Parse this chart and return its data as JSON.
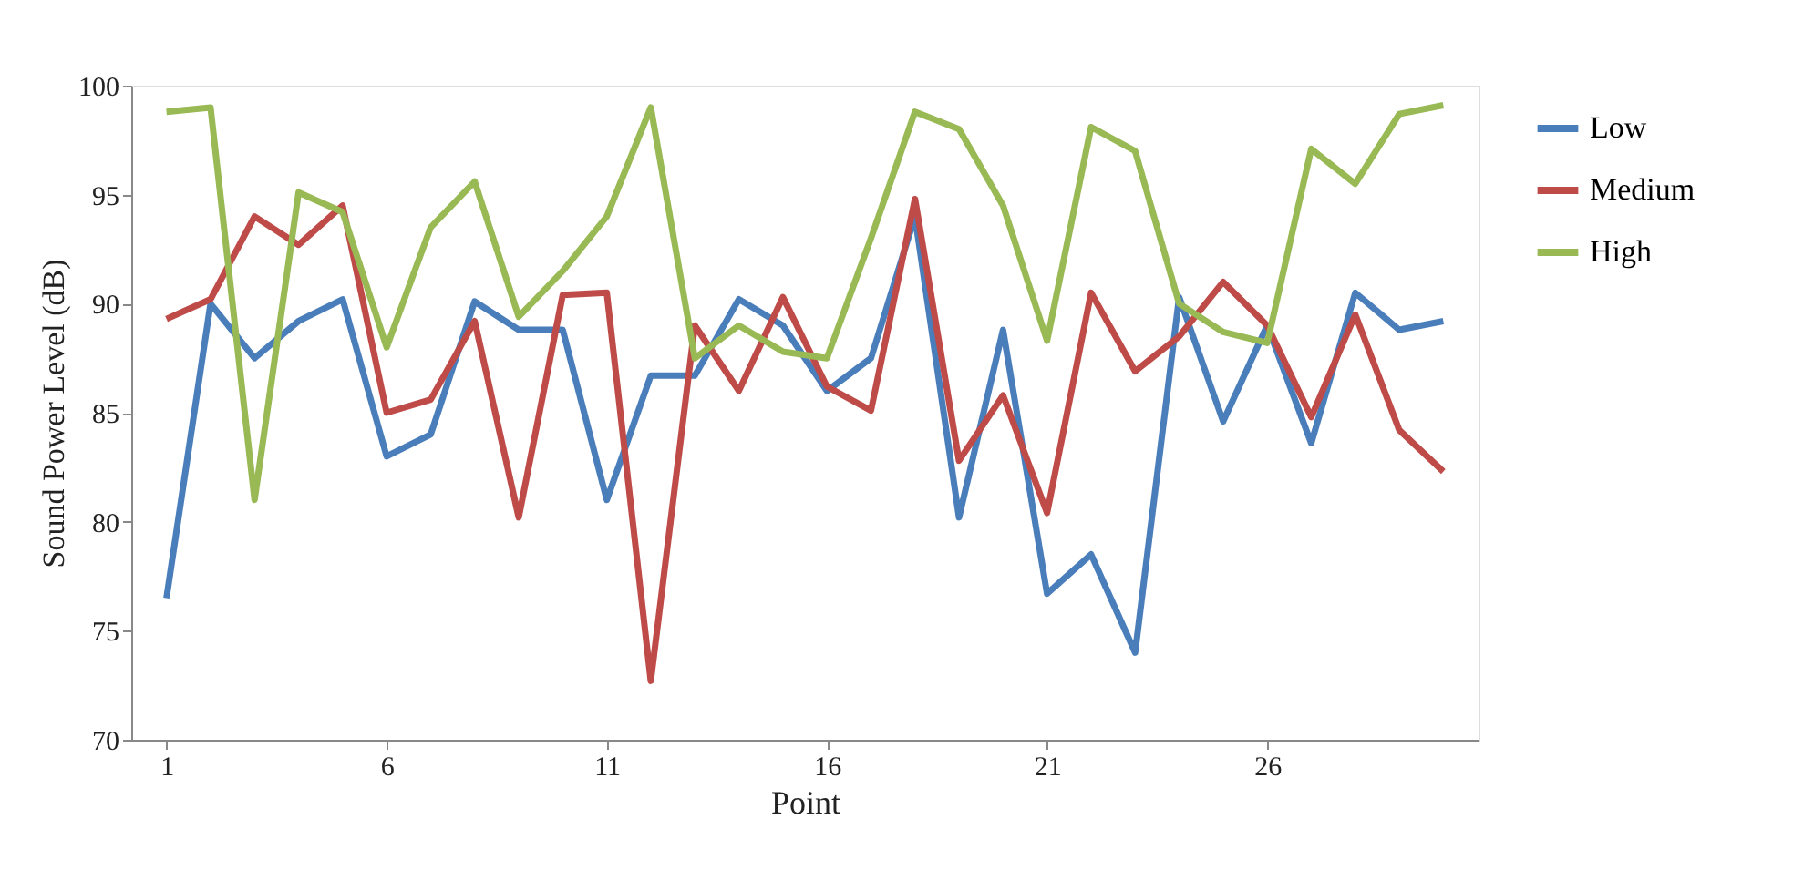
{
  "chart_data": {
    "type": "line",
    "xlabel": "Point",
    "ylabel": "Sound Power Level (dB)",
    "x": [
      1,
      2,
      3,
      4,
      5,
      6,
      7,
      8,
      9,
      10,
      11,
      12,
      13,
      14,
      15,
      16,
      17,
      18,
      19,
      20,
      21,
      22,
      23,
      24,
      25,
      26,
      27,
      28,
      29,
      30
    ],
    "xlim": [
      0.2,
      30.8
    ],
    "xticks": [
      1,
      6,
      11,
      16,
      21,
      26
    ],
    "ylim": [
      70,
      100
    ],
    "yticks": [
      70,
      75,
      80,
      85,
      90,
      95,
      100
    ],
    "grid": false,
    "legend": "right",
    "marker": "none",
    "line_style": "solid",
    "series": [
      {
        "name": "Low",
        "color": "#4a7ebb",
        "values": [
          76.5,
          90,
          87.5,
          89.2,
          90.2,
          83,
          84,
          90.1,
          88.8,
          88.8,
          81,
          86.7,
          86.7,
          90.2,
          89,
          86,
          87.5,
          94,
          80.2,
          88.8,
          76.7,
          78.5,
          74,
          90.3,
          84.6,
          89,
          83.6,
          90.5,
          88.8,
          89.2
        ]
      },
      {
        "name": "Medium",
        "color": "#be4b48",
        "values": [
          89.3,
          90.2,
          94,
          92.7,
          94.5,
          85,
          85.6,
          89.2,
          80.2,
          90.4,
          90.5,
          72.7,
          89,
          86,
          90.3,
          86.2,
          85.1,
          94.8,
          82.8,
          85.8,
          80.4,
          90.5,
          86.9,
          88.5,
          91,
          89,
          84.8,
          89.5,
          84.2,
          82.3
        ]
      },
      {
        "name": "High",
        "color": "#98b954",
        "values": [
          98.8,
          99,
          81,
          95.1,
          94.2,
          88,
          93.5,
          95.6,
          89.4,
          91.5,
          94,
          99,
          87.5,
          89,
          87.8,
          87.5,
          93,
          98.8,
          98,
          94.5,
          88.3,
          98.1,
          97,
          90,
          88.7,
          88.2,
          97.1,
          95.5,
          98.7,
          99.1
        ]
      }
    ]
  }
}
